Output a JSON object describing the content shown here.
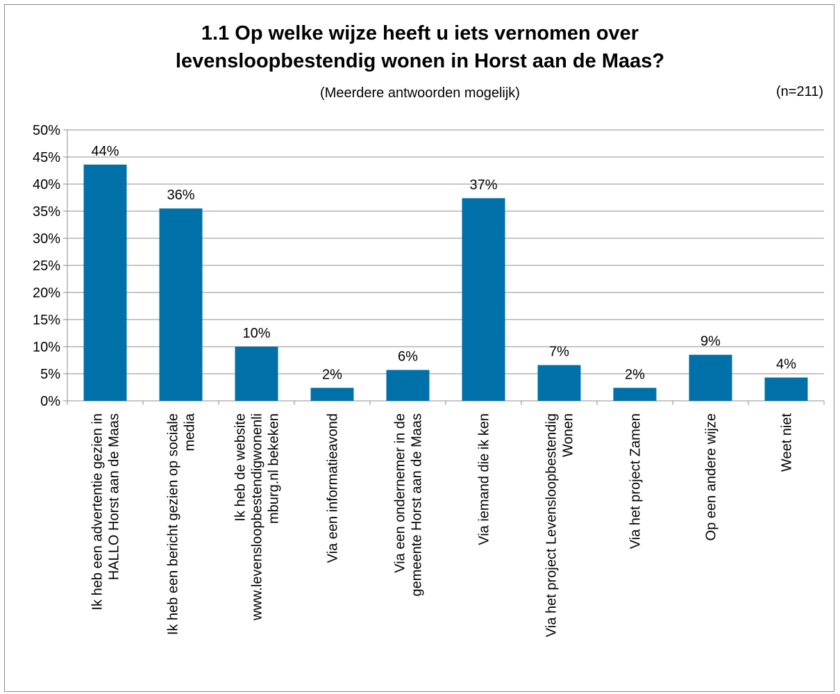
{
  "chart_data": {
    "type": "bar",
    "title_lines": [
      "1.1 Op welke wijze heeft u iets vernomen over",
      "levensloopbestendig wonen in Horst aan de Maas?"
    ],
    "subtitle": "(Meerdere antwoorden mogelijk)",
    "note": "(n=211)",
    "categories": [
      [
        "Ik heb een advertentie gezien in",
        "HALLO Horst aan de Maas"
      ],
      [
        "Ik heb een bericht gezien op sociale",
        "media"
      ],
      [
        "Ik heb de website",
        "www.levensloopbestendigwonenli",
        "mburg.nl bekeken"
      ],
      [
        "Via een informatieavond"
      ],
      [
        "Via een ondernemer in de",
        "gemeente Horst aan de Maas"
      ],
      [
        "Via iemand die ik ken"
      ],
      [
        "Via het project Levensloopbestendig",
        "Wonen"
      ],
      [
        "Via het project Zamen"
      ],
      [
        "Op een andere wijze"
      ],
      [
        "Weet niet"
      ]
    ],
    "values": [
      43.6,
      35.5,
      10.0,
      2.4,
      5.7,
      37.4,
      6.6,
      2.4,
      8.5,
      4.3
    ],
    "data_labels": [
      "44%",
      "36%",
      "10%",
      "2%",
      "6%",
      "37%",
      "7%",
      "2%",
      "9%",
      "4%"
    ],
    "y_ticks": [
      "0%",
      "5%",
      "10%",
      "15%",
      "20%",
      "25%",
      "30%",
      "35%",
      "40%",
      "45%",
      "50%"
    ],
    "ylim": [
      0,
      50
    ],
    "grid": true,
    "legend": "none",
    "bar_color": "#0070a8",
    "grid_color": "#8c8c8c"
  }
}
